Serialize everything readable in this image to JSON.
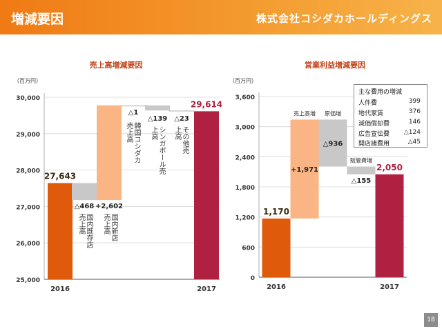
{
  "header": {
    "title": "増減要因",
    "company": "株式会社コシダカホールディングス"
  },
  "page_number": "18",
  "chart_data": [
    {
      "type": "bar",
      "subtype": "waterfall",
      "title": "売上高増減要因",
      "unit_label": "（百万円）",
      "ylim": [
        25000,
        30000
      ],
      "yticks": [
        "25,000",
        "26,000",
        "27,000",
        "28,000",
        "29,000",
        "30,000"
      ],
      "ytick_values": [
        25000,
        26000,
        27000,
        28000,
        29000,
        30000
      ],
      "steps": [
        {
          "label": "2016",
          "kind": "total",
          "value": 27643,
          "value_label": "27,643",
          "color": "#e05a0c"
        },
        {
          "label": "国内既存店売上高",
          "kind": "delta",
          "value": -468,
          "value_label": "△468",
          "color": "#c8c8c8"
        },
        {
          "label": "国内新店売上高",
          "kind": "delta",
          "value": 2602,
          "value_label": "+2,602",
          "color": "#fbb584"
        },
        {
          "label": "韓国コシダカ売上高",
          "kind": "delta",
          "value": -1,
          "value_label": "△1",
          "color": "#c8c8c8"
        },
        {
          "label": "シンガポール売上高",
          "kind": "delta",
          "value": -139,
          "value_label": "△139",
          "color": "#c8c8c8"
        },
        {
          "label": "その他売上高",
          "kind": "delta",
          "value": -23,
          "value_label": "△23",
          "color": "#c8c8c8"
        },
        {
          "label": "2017",
          "kind": "total",
          "value": 29614,
          "value_label": "29,614",
          "color": "#b02040"
        }
      ]
    },
    {
      "type": "bar",
      "subtype": "waterfall",
      "title": "営業利益増減要因",
      "unit_label": "（百万円）",
      "ylim": [
        0,
        3600
      ],
      "yticks": [
        "0",
        "600",
        "1,200",
        "1,800",
        "2,400",
        "3,000",
        "3,600"
      ],
      "ytick_values": [
        0,
        600,
        1200,
        1800,
        2400,
        3000,
        3600
      ],
      "steps": [
        {
          "label": "2016",
          "kind": "total",
          "value": 1170,
          "value_label": "1,170",
          "color": "#e05a0c"
        },
        {
          "label": "売上高増",
          "kind": "delta",
          "value": 1971,
          "value_label": "+1,971",
          "color": "#fbb584"
        },
        {
          "label": "原価増",
          "kind": "delta",
          "value": -936,
          "value_label": "△936",
          "color": "#c8c8c8"
        },
        {
          "label": "販管費増",
          "kind": "delta",
          "value": -155,
          "value_label": "△155",
          "color": "#c8c8c8"
        },
        {
          "label": "2017",
          "kind": "total",
          "value": 2050,
          "value_label": "2,050",
          "color": "#b02040"
        }
      ],
      "breakdown": {
        "title": "主な費用の増減",
        "items": [
          {
            "name": "人件費",
            "value": "399"
          },
          {
            "name": "地代家賃",
            "value": "376"
          },
          {
            "name": "減価償却費",
            "value": "146"
          },
          {
            "name": "広告宣伝費",
            "value": "△124"
          },
          {
            "name": "開店諸費用",
            "value": "△45"
          }
        ]
      }
    }
  ]
}
